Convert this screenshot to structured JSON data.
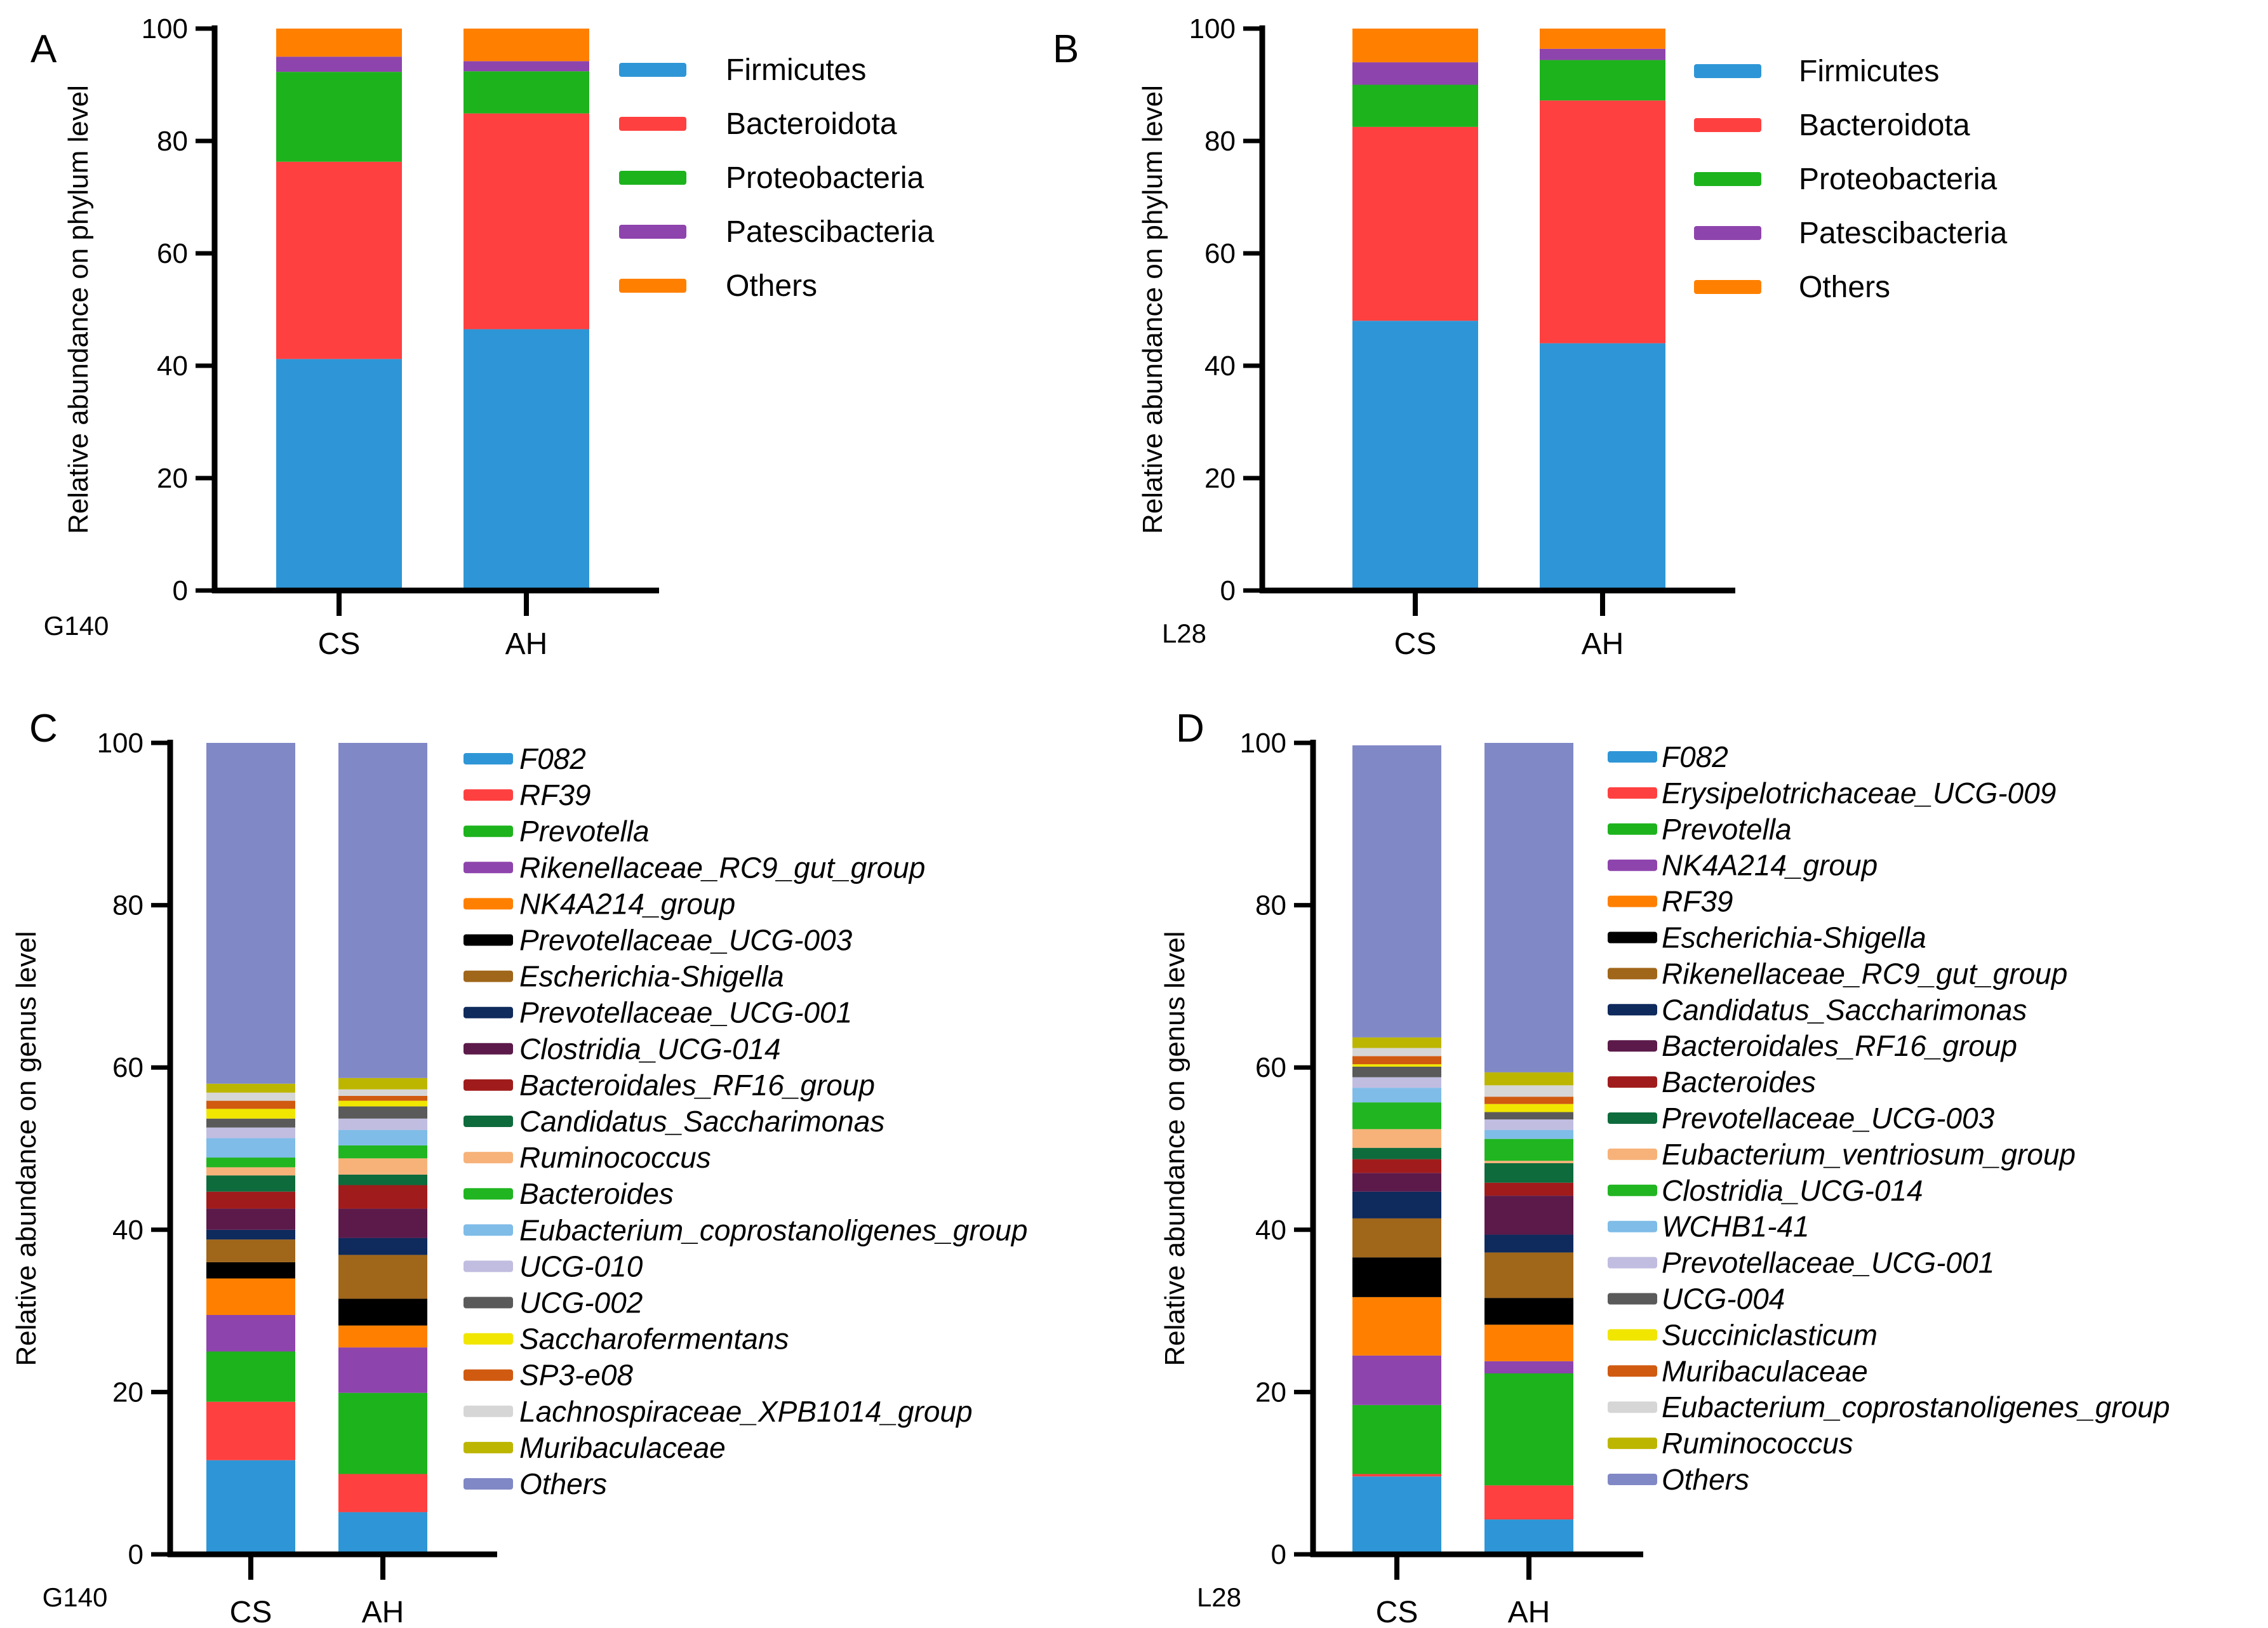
{
  "chart_data": [
    {
      "panel": "A",
      "type": "bar",
      "stacked": true,
      "corner_label": "G140",
      "ylabel": "Relative abundance on phylum level",
      "xlabel": "",
      "ylim": [
        0,
        100
      ],
      "yticks": [
        "0",
        "20",
        "40",
        "60",
        "80",
        "100"
      ],
      "categories": [
        "CS",
        "AH"
      ],
      "legend_italic": false,
      "series": [
        {
          "name": "Firmicutes",
          "color": "#2E96D6",
          "values": [
            41.2,
            46.5
          ]
        },
        {
          "name": "Bacteroidota",
          "color": "#FF4040",
          "values": [
            35.1,
            38.4
          ]
        },
        {
          "name": "Proteobacteria",
          "color": "#1DB31D",
          "values": [
            16.0,
            7.5
          ]
        },
        {
          "name": "Patescibacteria",
          "color": "#8E44AD",
          "values": [
            2.7,
            1.8
          ]
        },
        {
          "name": "Others",
          "color": "#FF8000",
          "values": [
            5.0,
            5.8
          ]
        }
      ]
    },
    {
      "panel": "B",
      "type": "bar",
      "stacked": true,
      "corner_label": "L28",
      "ylabel": "Relative abundance on phylum level",
      "xlabel": "",
      "ylim": [
        0,
        100
      ],
      "yticks": [
        "0",
        "20",
        "40",
        "60",
        "80",
        "100"
      ],
      "categories": [
        "CS",
        "AH"
      ],
      "legend_italic": false,
      "series": [
        {
          "name": "Firmicutes",
          "color": "#2E96D6",
          "values": [
            48.0,
            44.0
          ]
        },
        {
          "name": "Bacteroidota",
          "color": "#FF4040",
          "values": [
            34.5,
            43.2
          ]
        },
        {
          "name": "Proteobacteria",
          "color": "#1DB31D",
          "values": [
            7.5,
            7.2
          ]
        },
        {
          "name": "Patescibacteria",
          "color": "#8E44AD",
          "values": [
            4.0,
            2.0
          ]
        },
        {
          "name": "Others",
          "color": "#FF8000",
          "values": [
            6.0,
            3.6
          ]
        }
      ]
    },
    {
      "panel": "C",
      "type": "bar",
      "stacked": true,
      "corner_label": "G140",
      "ylabel": "Relative abundance on genus level",
      "xlabel": "",
      "ylim": [
        0,
        100
      ],
      "yticks": [
        "0",
        "20",
        "40",
        "60",
        "80",
        "100"
      ],
      "categories": [
        "CS",
        "AH"
      ],
      "legend_italic": true,
      "series": [
        {
          "name": "F082",
          "color": "#2E96D6",
          "values": [
            11.6,
            5.2
          ]
        },
        {
          "name": "RF39",
          "color": "#FF4040",
          "values": [
            7.2,
            4.7
          ]
        },
        {
          "name": "Prevotella",
          "color": "#1DB31D",
          "values": [
            6.2,
            10.0
          ]
        },
        {
          "name": "Rikenellaceae_RC9_gut_group",
          "color": "#8E44AD",
          "values": [
            4.5,
            5.6
          ]
        },
        {
          "name": "NK4A214_group",
          "color": "#FF8000",
          "values": [
            4.5,
            2.7
          ]
        },
        {
          "name": "Prevotellaceae_UCG-003",
          "color": "#000000",
          "values": [
            2.0,
            3.3
          ]
        },
        {
          "name": "Escherichia-Shigella",
          "color": "#A0661A",
          "values": [
            2.8,
            5.4
          ]
        },
        {
          "name": "Prevotellaceae_UCG-001",
          "color": "#0F2A5C",
          "values": [
            1.2,
            2.1
          ]
        },
        {
          "name": "Clostridia_UCG-014",
          "color": "#5C1A4A",
          "values": [
            2.6,
            3.6
          ]
        },
        {
          "name": "Bacteroidales_RF16_group",
          "color": "#A01C1C",
          "values": [
            2.1,
            2.9
          ]
        },
        {
          "name": "Candidatus_Saccharimonas",
          "color": "#0E6B3C",
          "values": [
            2.0,
            1.3
          ]
        },
        {
          "name": "Ruminococcus",
          "color": "#F7B27A",
          "values": [
            1.0,
            2.0
          ]
        },
        {
          "name": "Bacteroides",
          "color": "#21B521",
          "values": [
            1.2,
            1.6
          ]
        },
        {
          "name": "Eubacterium_coprostanoligenes_group",
          "color": "#7FBCE8",
          "values": [
            2.4,
            1.9
          ]
        },
        {
          "name": "UCG-010",
          "color": "#C0BDE0",
          "values": [
            1.3,
            1.4
          ]
        },
        {
          "name": "UCG-002",
          "color": "#5A5A5A",
          "values": [
            1.1,
            1.5
          ]
        },
        {
          "name": "Saccharofermentans",
          "color": "#F0E600",
          "values": [
            1.2,
            0.7
          ]
        },
        {
          "name": "SP3-e08",
          "color": "#D05A10",
          "values": [
            1.0,
            0.6
          ]
        },
        {
          "name": "Lachnospiraceae_XPB1014_group",
          "color": "#D6D6D6",
          "values": [
            1.0,
            0.8
          ]
        },
        {
          "name": "Muribaculaceae",
          "color": "#BDB600",
          "values": [
            1.1,
            1.4
          ]
        },
        {
          "name": "Others",
          "color": "#8188C6",
          "values": [
            42.0,
            41.3
          ]
        }
      ]
    },
    {
      "panel": "D",
      "type": "bar",
      "stacked": true,
      "corner_label": "L28",
      "ylabel": "Relative abundance on genus level",
      "xlabel": "",
      "ylim": [
        0,
        100
      ],
      "yticks": [
        "0",
        "20",
        "40",
        "60",
        "80",
        "100"
      ],
      "categories": [
        "CS",
        "AH"
      ],
      "legend_italic": true,
      "series": [
        {
          "name": "F082",
          "color": "#2E96D6",
          "values": [
            9.6,
            4.3
          ]
        },
        {
          "name": "Erysipelotrichaceae_UCG-009",
          "color": "#FF4040",
          "values": [
            0.3,
            4.2
          ]
        },
        {
          "name": "Prevotella",
          "color": "#1DB31D",
          "values": [
            8.5,
            13.8
          ]
        },
        {
          "name": "NK4A214_group",
          "color": "#8E44AD",
          "values": [
            6.1,
            1.5
          ]
        },
        {
          "name": "RF39",
          "color": "#FF8000",
          "values": [
            7.2,
            4.5
          ]
        },
        {
          "name": "Escherichia-Shigella",
          "color": "#000000",
          "values": [
            4.9,
            3.3
          ]
        },
        {
          "name": "Rikenellaceae_RC9_gut_group",
          "color": "#A0661A",
          "values": [
            4.8,
            5.6
          ]
        },
        {
          "name": "Candidatus_Saccharimonas",
          "color": "#0F2A5C",
          "values": [
            3.3,
            2.2
          ]
        },
        {
          "name": "Bacteroidales_RF16_group",
          "color": "#5C1A4A",
          "values": [
            2.3,
            4.8
          ]
        },
        {
          "name": "Bacteroides",
          "color": "#A01C1C",
          "values": [
            1.7,
            1.6
          ]
        },
        {
          "name": "Prevotellaceae_UCG-003",
          "color": "#0E6B3C",
          "values": [
            1.4,
            2.4
          ]
        },
        {
          "name": "Eubacterium_ventriosum_group",
          "color": "#F7B27A",
          "values": [
            2.3,
            0.3
          ]
        },
        {
          "name": "Clostridia_UCG-014",
          "color": "#21B521",
          "values": [
            3.3,
            2.7
          ]
        },
        {
          "name": "WCHB1-41",
          "color": "#7FBCE8",
          "values": [
            1.8,
            1.1
          ]
        },
        {
          "name": "Prevotellaceae_UCG-001",
          "color": "#C0BDE0",
          "values": [
            1.3,
            1.3
          ]
        },
        {
          "name": "UCG-004",
          "color": "#5A5A5A",
          "values": [
            1.3,
            0.9
          ]
        },
        {
          "name": "Succiniclasticum",
          "color": "#F0E600",
          "values": [
            0.3,
            1.0
          ]
        },
        {
          "name": "Muribaculaceae",
          "color": "#D05A10",
          "values": [
            1.0,
            0.9
          ]
        },
        {
          "name": "Eubacterium_coprostanoligenes_group",
          "color": "#D6D6D6",
          "values": [
            1.0,
            1.4
          ]
        },
        {
          "name": "Ruminococcus",
          "color": "#BDB600",
          "values": [
            1.3,
            1.6
          ]
        },
        {
          "name": "Others",
          "color": "#8188C6",
          "values": [
            36.0,
            40.6
          ]
        }
      ]
    }
  ]
}
